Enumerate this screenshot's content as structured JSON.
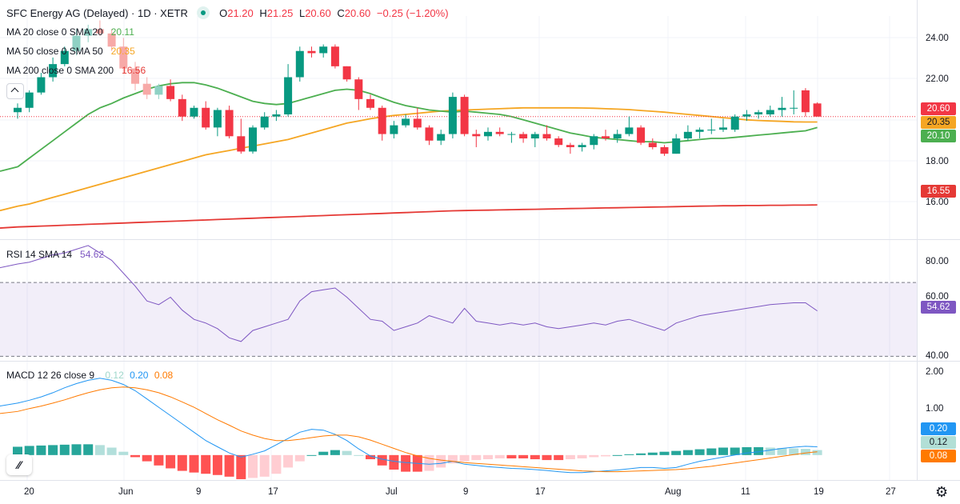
{
  "header": {
    "symbol": "SFC Energy AG (Delayed) · 1D · XETR",
    "o_label": "O",
    "o": "21.20",
    "h_label": "H",
    "h": "21.25",
    "l_label": "L",
    "l": "20.60",
    "c_label": "C",
    "c": "20.60",
    "change": "−0.25 (−1.20%)"
  },
  "indicators": {
    "ma20": {
      "label": "MA 20 close 0 SMA 20",
      "value": "20.11",
      "color": "#4caf50"
    },
    "ma50": {
      "label": "MA 50 close 0 SMA 50",
      "value": "20.35",
      "color": "#f5a623"
    },
    "ma200": {
      "label": "MA 200 close 0 SMA 200",
      "value": "16.56",
      "color": "#e53935"
    },
    "rsi": {
      "label": "RSI 14 SMA 14",
      "value": "54.62",
      "color": "#7e57c2"
    },
    "macd": {
      "label": "MACD 12 26 close 9",
      "hist": "0.12",
      "macd": "0.20",
      "signal": "0.08"
    }
  },
  "price_axis": {
    "ticks": [
      "24.00",
      "22.00",
      "18.00",
      "16.00"
    ],
    "tags": {
      "last": "20.60",
      "ma50": "20.35",
      "ma20": "20.10",
      "ma200": "16.55"
    }
  },
  "rsi_axis": {
    "ticks": [
      "80.00",
      "60.00",
      "40.00"
    ],
    "tag": "54.62"
  },
  "macd_axis": {
    "ticks": [
      "2.00",
      "1.00"
    ],
    "tags": {
      "macd": "0.20",
      "hist": "0.12",
      "signal": "0.08"
    }
  },
  "time_axis": [
    "20",
    "Jun",
    "9",
    "17",
    "Jul",
    "9",
    "17",
    "Aug",
    "11",
    "19",
    "27"
  ],
  "chart_data": {
    "type": "candlestick",
    "ylim": [
      15.1,
      25.2
    ],
    "candles": [
      [
        20.8,
        21.2,
        20.5,
        21.0
      ],
      [
        21.0,
        21.8,
        20.8,
        21.7
      ],
      [
        21.7,
        22.6,
        21.6,
        22.4
      ],
      [
        22.4,
        23.3,
        22.2,
        23.0
      ],
      [
        23.0,
        23.8,
        22.9,
        23.6
      ],
      [
        23.6,
        24.6,
        23.4,
        24.3
      ],
      [
        24.3,
        24.8,
        24.0,
        24.6
      ],
      [
        24.6,
        25.0,
        24.3,
        24.4
      ],
      [
        24.4,
        24.6,
        23.6,
        23.8
      ],
      [
        23.8,
        24.2,
        22.6,
        22.8
      ],
      [
        22.8,
        23.1,
        21.8,
        22.1
      ],
      [
        22.1,
        22.4,
        21.4,
        21.6
      ],
      [
        21.6,
        22.1,
        21.4,
        22.0
      ],
      [
        22.0,
        22.3,
        21.3,
        21.4
      ],
      [
        21.4,
        21.6,
        20.4,
        20.6
      ],
      [
        20.6,
        21.1,
        20.5,
        21.0
      ],
      [
        21.0,
        21.3,
        20.0,
        20.1
      ],
      [
        20.1,
        21.0,
        19.7,
        20.9
      ],
      [
        20.9,
        21.1,
        19.6,
        19.7
      ],
      [
        19.7,
        20.5,
        18.9,
        19.0
      ],
      [
        19.0,
        20.2,
        18.9,
        20.1
      ],
      [
        20.1,
        20.8,
        20.0,
        20.6
      ],
      [
        20.6,
        20.9,
        20.4,
        20.7
      ],
      [
        20.7,
        23.0,
        20.6,
        22.4
      ],
      [
        22.4,
        23.8,
        22.2,
        23.6
      ],
      [
        23.6,
        23.8,
        23.3,
        23.5
      ],
      [
        23.5,
        23.9,
        23.3,
        23.8
      ],
      [
        23.8,
        23.9,
        22.8,
        22.9
      ],
      [
        22.9,
        22.9,
        22.2,
        22.3
      ],
      [
        22.3,
        22.4,
        20.9,
        21.4
      ],
      [
        21.4,
        21.6,
        20.9,
        21.0
      ],
      [
        21.0,
        21.1,
        19.5,
        19.8
      ],
      [
        19.8,
        20.4,
        19.6,
        20.2
      ],
      [
        20.2,
        20.7,
        20.1,
        20.5
      ],
      [
        20.5,
        21.0,
        20.0,
        20.1
      ],
      [
        20.1,
        20.2,
        19.3,
        19.5
      ],
      [
        19.5,
        20.0,
        19.3,
        19.8
      ],
      [
        19.8,
        21.7,
        19.6,
        21.5
      ],
      [
        21.5,
        21.6,
        19.7,
        19.8
      ],
      [
        19.8,
        20.0,
        19.2,
        19.7
      ],
      [
        19.7,
        20.1,
        19.5,
        19.9
      ],
      [
        19.9,
        20.1,
        19.7,
        19.8
      ],
      [
        19.8,
        19.9,
        19.4,
        19.8
      ],
      [
        19.8,
        19.9,
        19.4,
        19.6
      ],
      [
        19.6,
        19.9,
        19.2,
        19.8
      ],
      [
        19.8,
        20.2,
        19.5,
        19.6
      ],
      [
        19.6,
        19.7,
        19.2,
        19.3
      ],
      [
        19.3,
        19.4,
        18.9,
        19.2
      ],
      [
        19.2,
        19.4,
        19.0,
        19.3
      ],
      [
        19.3,
        19.8,
        19.1,
        19.7
      ],
      [
        19.7,
        20.0,
        19.5,
        19.6
      ],
      [
        19.6,
        20.0,
        19.4,
        19.8
      ],
      [
        19.8,
        20.6,
        19.7,
        20.1
      ],
      [
        20.1,
        20.2,
        19.3,
        19.4
      ],
      [
        19.4,
        19.6,
        19.1,
        19.2
      ],
      [
        19.2,
        19.3,
        18.8,
        18.9
      ],
      [
        18.9,
        19.8,
        18.9,
        19.6
      ],
      [
        19.6,
        20.2,
        19.5,
        19.9
      ],
      [
        19.9,
        20.1,
        19.6,
        20.0
      ],
      [
        20.0,
        20.5,
        19.8,
        20.0
      ],
      [
        20.0,
        20.5,
        19.9,
        20.1
      ],
      [
        20.0,
        20.7,
        19.9,
        20.6
      ],
      [
        20.6,
        20.9,
        20.4,
        20.7
      ],
      [
        20.7,
        20.9,
        20.5,
        20.8
      ],
      [
        20.7,
        21.1,
        20.6,
        20.9
      ],
      [
        20.9,
        21.5,
        20.6,
        21.0
      ],
      [
        21.0,
        21.8,
        20.7,
        21.0
      ],
      [
        21.8,
        21.9,
        20.6,
        20.8
      ],
      [
        21.2,
        21.25,
        20.6,
        20.6
      ]
    ],
    "ma20": [
      18.3,
      18.7,
      19.1,
      19.5,
      19.9,
      20.3,
      20.7,
      21.0,
      21.2,
      21.45,
      21.65,
      21.85,
      22.0,
      22.1,
      22.15,
      22.15,
      22.05,
      21.9,
      21.7,
      21.5,
      21.3,
      21.2,
      21.15,
      21.2,
      21.35,
      21.5,
      21.65,
      21.8,
      21.85,
      21.8,
      21.65,
      21.45,
      21.25,
      21.1,
      21.0,
      20.9,
      20.85,
      20.8,
      20.85,
      20.8,
      20.75,
      20.7,
      20.6,
      20.45,
      20.3,
      20.15,
      20.0,
      19.85,
      19.75,
      19.65,
      19.6,
      19.55,
      19.5,
      19.45,
      19.45,
      19.4,
      19.45,
      19.5,
      19.55,
      19.6,
      19.6,
      19.65,
      19.7,
      19.75,
      19.8,
      19.85,
      19.9,
      19.95,
      20.1
    ],
    "ma50": [
      16.5,
      16.6,
      16.75,
      16.9,
      17.05,
      17.2,
      17.35,
      17.5,
      17.65,
      17.8,
      17.95,
      18.1,
      18.25,
      18.4,
      18.55,
      18.7,
      18.85,
      18.95,
      19.05,
      19.15,
      19.25,
      19.35,
      19.45,
      19.55,
      19.7,
      19.85,
      20.0,
      20.15,
      20.3,
      20.4,
      20.5,
      20.58,
      20.65,
      20.7,
      20.75,
      20.8,
      20.85,
      20.88,
      20.9,
      20.92,
      20.94,
      20.96,
      20.98,
      21.0,
      21.0,
      21.0,
      21.0,
      21.0,
      20.99,
      20.98,
      20.96,
      20.94,
      20.92,
      20.88,
      20.84,
      20.8,
      20.75,
      20.7,
      20.65,
      20.6,
      20.55,
      20.5,
      20.45,
      20.42,
      20.4,
      20.38,
      20.36,
      20.35,
      20.35
    ],
    "ma200": [
      15.55,
      15.57,
      15.59,
      15.61,
      15.63,
      15.65,
      15.67,
      15.69,
      15.71,
      15.73,
      15.75,
      15.77,
      15.79,
      15.81,
      15.83,
      15.85,
      15.87,
      15.89,
      15.91,
      15.93,
      15.95,
      15.97,
      15.99,
      16.01,
      16.03,
      16.05,
      16.07,
      16.09,
      16.11,
      16.13,
      16.15,
      16.17,
      16.19,
      16.21,
      16.23,
      16.25,
      16.27,
      16.29,
      16.3,
      16.31,
      16.32,
      16.33,
      16.34,
      16.35,
      16.36,
      16.37,
      16.38,
      16.39,
      16.4,
      16.41,
      16.42,
      16.43,
      16.44,
      16.45,
      16.46,
      16.47,
      16.48,
      16.49,
      16.5,
      16.51,
      16.52,
      16.52,
      16.53,
      16.53,
      16.54,
      16.54,
      16.55,
      16.55,
      16.56
    ],
    "rsi": {
      "ylim": [
        28,
        93
      ],
      "bands": [
        70,
        30
      ],
      "values": [
        80,
        81,
        83,
        85,
        86,
        88,
        90,
        86,
        82,
        75,
        68,
        60,
        58,
        62,
        55,
        50,
        48,
        45,
        40,
        38,
        44,
        46,
        48,
        50,
        60,
        65,
        66,
        67,
        62,
        56,
        50,
        49,
        44,
        46,
        48,
        52,
        50,
        48,
        56,
        49,
        48,
        47,
        48,
        47,
        48,
        46,
        45,
        46,
        47,
        48,
        47,
        49,
        50,
        48,
        46,
        44,
        48,
        50,
        52,
        53,
        54,
        55,
        56,
        57,
        58,
        58.5,
        59,
        59,
        54.62
      ]
    },
    "macd": {
      "ylim": [
        -0.6,
        2.25
      ],
      "hist": [
        0.2,
        0.22,
        0.23,
        0.24,
        0.25,
        0.26,
        0.26,
        0.24,
        0.18,
        0.08,
        -0.05,
        -0.15,
        -0.25,
        -0.32,
        -0.38,
        -0.42,
        -0.45,
        -0.48,
        -0.52,
        -0.58,
        -0.55,
        -0.52,
        -0.45,
        -0.3,
        -0.15,
        0.0,
        0.08,
        0.12,
        0.1,
        0.0,
        -0.1,
        -0.25,
        -0.35,
        -0.4,
        -0.4,
        -0.38,
        -0.3,
        -0.2,
        -0.15,
        -0.12,
        -0.1,
        -0.08,
        -0.08,
        -0.08,
        -0.1,
        -0.12,
        -0.12,
        -0.1,
        -0.08,
        -0.05,
        -0.03,
        0.0,
        0.02,
        0.04,
        0.06,
        0.08,
        0.1,
        0.12,
        0.14,
        0.16,
        0.18,
        0.18,
        0.19,
        0.19,
        0.18,
        0.17,
        0.16,
        0.15,
        0.12
      ],
      "macd_line": [
        1.25,
        1.32,
        1.4,
        1.5,
        1.62,
        1.72,
        1.8,
        1.85,
        1.8,
        1.7,
        1.55,
        1.35,
        1.15,
        0.95,
        0.75,
        0.55,
        0.35,
        0.2,
        0.05,
        -0.05,
        0.02,
        0.1,
        0.25,
        0.4,
        0.55,
        0.62,
        0.6,
        0.5,
        0.35,
        0.15,
        -0.02,
        -0.1,
        -0.15,
        -0.18,
        -0.2,
        -0.22,
        -0.2,
        -0.15,
        -0.22,
        -0.25,
        -0.28,
        -0.3,
        -0.32,
        -0.33,
        -0.35,
        -0.37,
        -0.4,
        -0.42,
        -0.42,
        -0.4,
        -0.38,
        -0.36,
        -0.33,
        -0.3,
        -0.3,
        -0.32,
        -0.3,
        -0.22,
        -0.15,
        -0.1,
        -0.05,
        0.0,
        0.05,
        0.08,
        0.12,
        0.16,
        0.19,
        0.21,
        0.2
      ],
      "signal_line": [
        1.05,
        1.12,
        1.18,
        1.25,
        1.33,
        1.42,
        1.5,
        1.57,
        1.62,
        1.64,
        1.62,
        1.57,
        1.5,
        1.4,
        1.28,
        1.15,
        1.0,
        0.85,
        0.72,
        0.58,
        0.48,
        0.4,
        0.35,
        0.35,
        0.38,
        0.42,
        0.46,
        0.48,
        0.48,
        0.44,
        0.36,
        0.26,
        0.16,
        0.06,
        -0.02,
        -0.08,
        -0.12,
        -0.15,
        -0.18,
        -0.2,
        -0.22,
        -0.24,
        -0.26,
        -0.28,
        -0.3,
        -0.32,
        -0.34,
        -0.36,
        -0.38,
        -0.39,
        -0.4,
        -0.4,
        -0.39,
        -0.38,
        -0.37,
        -0.36,
        -0.35,
        -0.33,
        -0.3,
        -0.27,
        -0.23,
        -0.19,
        -0.15,
        -0.11,
        -0.07,
        -0.03,
        0.01,
        0.05,
        0.08
      ]
    }
  }
}
